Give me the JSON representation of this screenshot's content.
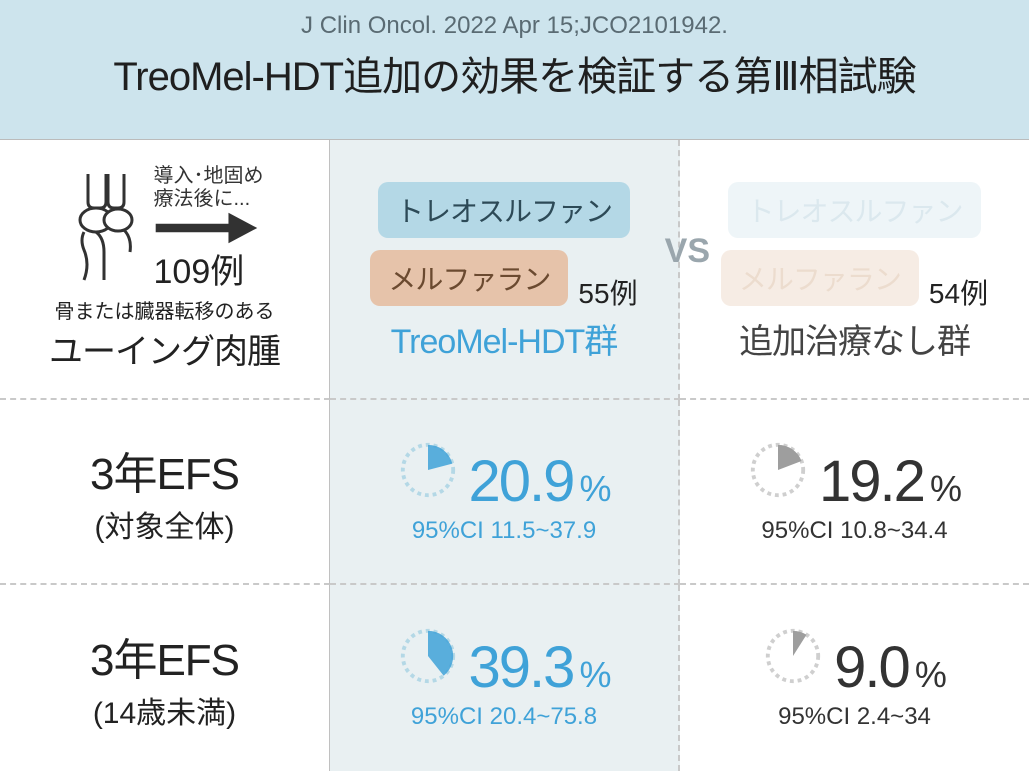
{
  "header": {
    "citation": "J Clin Oncol. 2022 Apr 15;JCO2101942.",
    "title": "TreoMel-HDT追加の効果を検証する第Ⅲ相試験"
  },
  "intro": {
    "lead1": "導入･地固め",
    "lead2": "療法後に...",
    "n_total": "109例",
    "subtext": "骨または臓器転移のある",
    "disease": "ユーイング肉腫"
  },
  "arms": {
    "treomel": {
      "drug1": "トレオスルファン",
      "drug2": "メルファラン",
      "n": "55例",
      "label": "TreoMel-HDT群",
      "pill1_bg": "#b4d8e6",
      "pill2_bg": "#e6c3aa",
      "label_color": "#3fa2d8"
    },
    "none": {
      "drug1": "トレオスルファン",
      "drug2": "メルファラン",
      "n": "54例",
      "label": "追加治療なし群",
      "label_color": "#444444"
    },
    "vs": "VS"
  },
  "metrics": {
    "row1": {
      "label_main": "3年EFS",
      "label_sub": "(対象全体)",
      "treomel": {
        "value": "20.9",
        "pct": "%",
        "ci": "95%CI 11.5~37.9",
        "color": "#3fa2d8",
        "fraction": 0.209,
        "ring": "#b4d8e6"
      },
      "none": {
        "value": "19.2",
        "pct": "%",
        "ci": "95%CI 10.8~34.4",
        "color": "#333333",
        "fraction": 0.192,
        "ring": "#cfcfcf",
        "fill": "#9e9e9e"
      }
    },
    "row2": {
      "label_main": "3年EFS",
      "label_sub": "(14歳未満)",
      "treomel": {
        "value": "39.3",
        "pct": "%",
        "ci": "95%CI 20.4~75.8",
        "color": "#3fa2d8",
        "fraction": 0.393,
        "ring": "#b4d8e6"
      },
      "none": {
        "value": "9.0",
        "pct": "%",
        "ci": "95%CI 2.4~34",
        "color": "#333333",
        "fraction": 0.09,
        "ring": "#cfcfcf",
        "fill": "#9e9e9e"
      }
    }
  },
  "style": {
    "header_bg": "#cde4ed",
    "mid_bg": "#e9f0f2",
    "dash": "#c9c9c9"
  }
}
